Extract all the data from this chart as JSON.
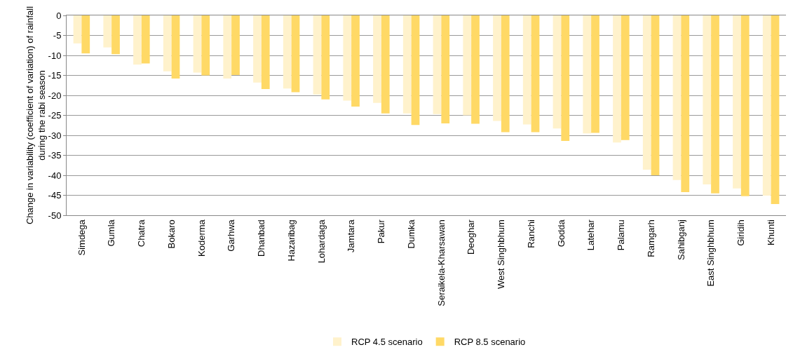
{
  "chart_data": {
    "type": "bar",
    "ylabel": "Change in variability (coefficient of variation) of rainfall during the rabi season",
    "categories": [
      "Simdega",
      "Gumla",
      "Chatra",
      "Bokaro",
      "Koderma",
      "Garhwa",
      "Dhanbad",
      "Hazaribag",
      "Lohardaga",
      "Jamtara",
      "Pakur",
      "Dumka",
      "Seraikela-Kharsawan",
      "Deoghar",
      "West Singhbhum",
      "Ranchi",
      "Godda",
      "Latehar",
      "Palamu",
      "Ramgarh",
      "Sahibganj",
      "East Singhbhum",
      "Giridih",
      "Khunti"
    ],
    "series": [
      {
        "name": "RCP 4.5 scenario",
        "color": "#fff2cc",
        "values": [
          -7,
          -8,
          -12.3,
          -14,
          -14.3,
          -15.8,
          -16.8,
          -18.3,
          -19.8,
          -21.3,
          -21.9,
          -24.5,
          -24.7,
          -25,
          -26.4,
          -27.3,
          -28.3,
          -29.5,
          -31.8,
          -38.6,
          -41.2,
          -42.3,
          -43.3,
          -45.1
        ]
      },
      {
        "name": "RCP 8.5 scenario",
        "color": "#ffd966",
        "values": [
          -9.5,
          -9.7,
          -12,
          -15.8,
          -15,
          -14.9,
          -18.4,
          -19.2,
          -21,
          -22.8,
          -24.5,
          -27.4,
          -27,
          -27.1,
          -29.2,
          -29.2,
          -31.4,
          -29.4,
          -31.2,
          -40,
          -44.2,
          -44.5,
          -45.2,
          -47.2
        ]
      }
    ],
    "ylim": [
      -50,
      0
    ],
    "yticks": [
      0,
      -5,
      -10,
      -15,
      -20,
      -25,
      -30,
      -35,
      -40,
      -45,
      -50
    ],
    "grid": "y",
    "legend": "bottom"
  }
}
